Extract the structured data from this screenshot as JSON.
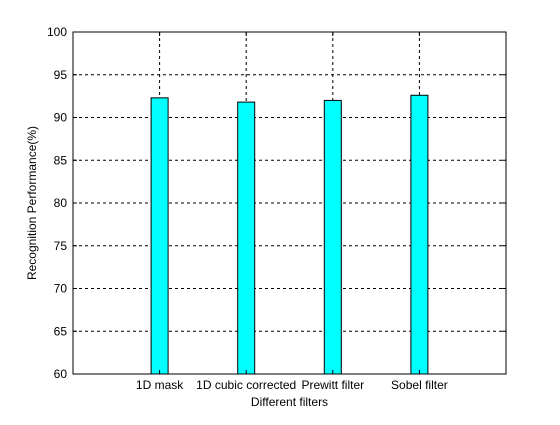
{
  "chart_data": {
    "type": "bar",
    "categories": [
      "1D mask",
      "1D cubic corrected",
      "Prewitt filter",
      "Sobel filter"
    ],
    "values": [
      92.3,
      91.8,
      92.0,
      92.6
    ],
    "title": "",
    "xlabel": "Different filters",
    "ylabel": "Recognition Performance(%)",
    "ylim": [
      60,
      100
    ],
    "yticks": [
      60,
      65,
      70,
      75,
      80,
      85,
      90,
      95,
      100
    ],
    "ytick_labels": [
      "60",
      "65",
      "70",
      "75",
      "80",
      "85",
      "90",
      "95",
      "100"
    ],
    "grid": true,
    "bar_color": "#00ffff",
    "edge_color": "#000000"
  }
}
